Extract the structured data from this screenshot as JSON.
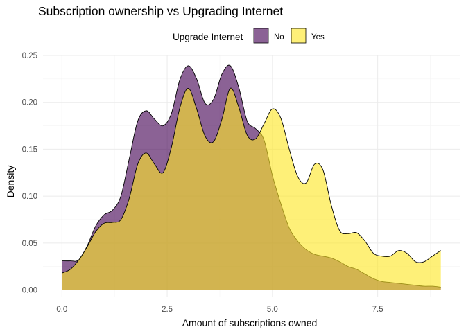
{
  "chart_data": {
    "type": "area",
    "subtype": "density",
    "title": "Subscription ownership vs Upgrading Internet",
    "xlabel": "Amount of subscriptions owned",
    "ylabel": "Density",
    "xlim": [
      -0.45,
      9.45
    ],
    "ylim": [
      -0.007,
      0.25
    ],
    "x_ticks": [
      0.0,
      2.5,
      5.0,
      7.5
    ],
    "x_tick_labels": [
      "0.0",
      "2.5",
      "5.0",
      "7.5"
    ],
    "y_ticks": [
      0.0,
      0.05,
      0.1,
      0.15,
      0.2,
      0.25
    ],
    "y_tick_labels": [
      "0.00",
      "0.05",
      "0.10",
      "0.15",
      "0.20",
      "0.25"
    ],
    "grid": true,
    "legend": {
      "title": "Upgrade Internet",
      "position": "top"
    },
    "series": [
      {
        "name": "No",
        "color": "#440154",
        "opacity": 0.62,
        "x": [
          0,
          0.2,
          0.4,
          0.6,
          0.8,
          1.0,
          1.2,
          1.4,
          1.6,
          1.8,
          2.0,
          2.2,
          2.4,
          2.6,
          2.8,
          3.0,
          3.2,
          3.4,
          3.6,
          3.8,
          4.0,
          4.2,
          4.4,
          4.6,
          4.8,
          5.0,
          5.2,
          5.4,
          5.6,
          5.8,
          6.0,
          6.2,
          6.4,
          6.6,
          6.8,
          7.0,
          7.2,
          7.4,
          7.6,
          7.8,
          8.0,
          8.2,
          8.4,
          8.6,
          8.8,
          9.0
        ],
        "values": [
          0.031,
          0.031,
          0.032,
          0.047,
          0.068,
          0.08,
          0.085,
          0.1,
          0.14,
          0.18,
          0.191,
          0.182,
          0.175,
          0.188,
          0.224,
          0.239,
          0.225,
          0.199,
          0.203,
          0.23,
          0.239,
          0.216,
          0.18,
          0.172,
          0.16,
          0.122,
          0.092,
          0.066,
          0.052,
          0.043,
          0.038,
          0.036,
          0.034,
          0.03,
          0.025,
          0.022,
          0.017,
          0.012,
          0.009,
          0.008,
          0.007,
          0.006,
          0.005,
          0.004,
          0.004,
          0.003
        ]
      },
      {
        "name": "Yes",
        "color": "#fde725",
        "opacity": 0.62,
        "x": [
          0,
          0.2,
          0.4,
          0.6,
          0.8,
          1.0,
          1.2,
          1.4,
          1.6,
          1.8,
          2.0,
          2.2,
          2.4,
          2.6,
          2.8,
          3.0,
          3.2,
          3.4,
          3.6,
          3.8,
          4.0,
          4.2,
          4.4,
          4.6,
          4.8,
          5.0,
          5.2,
          5.4,
          5.6,
          5.8,
          6.0,
          6.2,
          6.4,
          6.6,
          6.8,
          7.0,
          7.2,
          7.4,
          7.6,
          7.8,
          8.0,
          8.2,
          8.4,
          8.6,
          8.8,
          9.0
        ],
        "values": [
          0.018,
          0.022,
          0.032,
          0.046,
          0.062,
          0.071,
          0.072,
          0.075,
          0.098,
          0.134,
          0.146,
          0.134,
          0.125,
          0.152,
          0.194,
          0.215,
          0.193,
          0.164,
          0.158,
          0.182,
          0.215,
          0.195,
          0.165,
          0.161,
          0.177,
          0.193,
          0.183,
          0.15,
          0.121,
          0.114,
          0.134,
          0.128,
          0.09,
          0.063,
          0.06,
          0.061,
          0.052,
          0.039,
          0.036,
          0.036,
          0.042,
          0.039,
          0.03,
          0.03,
          0.036,
          0.042
        ]
      }
    ]
  }
}
